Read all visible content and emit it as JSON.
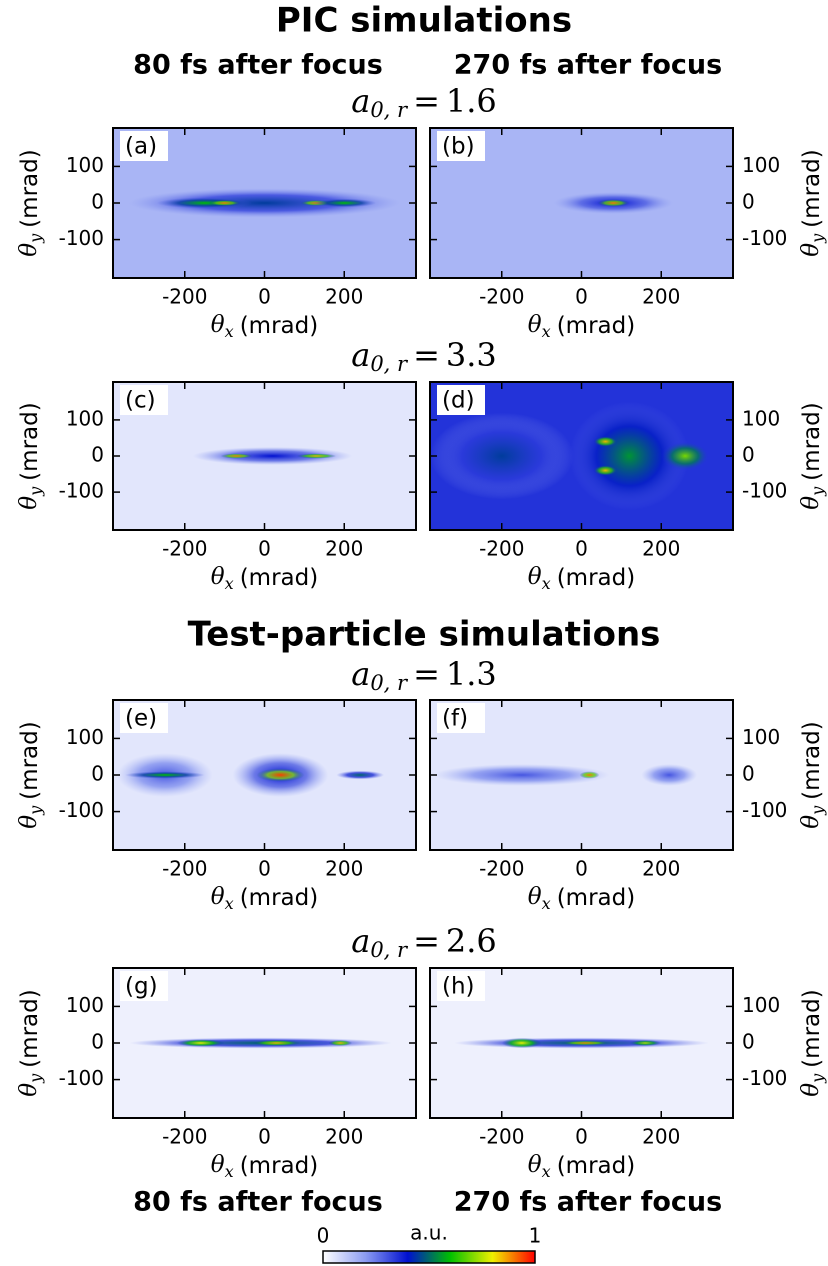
{
  "titles": [
    "PIC simulations",
    "Test-particle simulations"
  ],
  "column_headers": [
    "80 fs after focus",
    "270 fs after focus"
  ],
  "rows": [
    {
      "symbol": "a",
      "subscript": "0, r",
      "relation": "=",
      "value": 1.6
    },
    {
      "symbol": "a",
      "subscript": "0, r",
      "relation": "=",
      "value": 3.3
    },
    {
      "symbol": "a",
      "subscript": "0, r",
      "relation": "=",
      "value": 1.3
    },
    {
      "symbol": "a",
      "subscript": "0, r",
      "relation": "=",
      "value": 2.6
    }
  ],
  "colorbar": {
    "label": "a.u.",
    "lim": [
      0,
      1
    ],
    "ticks": [
      0,
      1
    ],
    "colormap": [
      "#ffffff",
      "#8c9cf2",
      "#0010d0",
      "#00c000",
      "#f0f000",
      "#ff0000"
    ]
  },
  "chart_data": [
    {
      "type": "heatmap",
      "label": "(a)",
      "xlabel": {
        "symbol": "θ",
        "subscript": "x",
        "unit": "(mrad)"
      },
      "ylabel": {
        "symbol": "θ",
        "subscript": "y",
        "unit": "(mrad)"
      },
      "xlim": [
        -380,
        380
      ],
      "ylim": [
        -205,
        205
      ],
      "xticks": [
        -200,
        0,
        200
      ],
      "yticks": [
        -100,
        0,
        100
      ],
      "background": 0.15,
      "blobs": [
        {
          "x": 0,
          "y": 0,
          "sx": 340,
          "sy": 40,
          "intensity": 0.45
        },
        {
          "x": -150,
          "y": 0,
          "sx": 120,
          "sy": 15,
          "intensity": 0.6
        },
        {
          "x": -100,
          "y": 0,
          "sx": 40,
          "sy": 8,
          "intensity": 0.9
        },
        {
          "x": 130,
          "y": 0,
          "sx": 40,
          "sy": 8,
          "intensity": 0.9
        },
        {
          "x": 200,
          "y": 0,
          "sx": 80,
          "sy": 12,
          "intensity": 0.6
        }
      ]
    },
    {
      "type": "heatmap",
      "label": "(b)",
      "xlabel": {
        "symbol": "θ",
        "subscript": "x",
        "unit": "(mrad)"
      },
      "ylabel": {
        "symbol": "θ",
        "subscript": "y",
        "unit": "(mrad)"
      },
      "xlim": [
        -380,
        380
      ],
      "ylim": [
        -205,
        205
      ],
      "xticks": [
        -200,
        0,
        200
      ],
      "yticks": [
        -100,
        0,
        100
      ],
      "background": 0.15,
      "blobs": [
        {
          "x": 80,
          "y": 0,
          "sx": 150,
          "sy": 30,
          "intensity": 0.4
        },
        {
          "x": 80,
          "y": 0,
          "sx": 40,
          "sy": 10,
          "intensity": 0.9
        }
      ]
    },
    {
      "type": "heatmap",
      "label": "(c)",
      "xlabel": {
        "symbol": "θ",
        "subscript": "x",
        "unit": "(mrad)"
      },
      "ylabel": {
        "symbol": "θ",
        "subscript": "y",
        "unit": "(mrad)"
      },
      "xlim": [
        -380,
        380
      ],
      "ylim": [
        -205,
        205
      ],
      "xticks": [
        -200,
        0,
        200
      ],
      "yticks": [
        -100,
        0,
        100
      ],
      "background": 0.05,
      "blobs": [
        {
          "x": 20,
          "y": 0,
          "sx": 200,
          "sy": 25,
          "intensity": 0.4
        },
        {
          "x": -70,
          "y": 0,
          "sx": 40,
          "sy": 7,
          "intensity": 0.9
        },
        {
          "x": 130,
          "y": 0,
          "sx": 50,
          "sy": 7,
          "intensity": 0.85
        }
      ]
    },
    {
      "type": "heatmap",
      "label": "(d)",
      "xlabel": {
        "symbol": "θ",
        "subscript": "x",
        "unit": "(mrad)"
      },
      "ylabel": {
        "symbol": "θ",
        "subscript": "y",
        "unit": "(mrad)"
      },
      "xlim": [
        -380,
        380
      ],
      "ylim": [
        -205,
        205
      ],
      "xticks": [
        -200,
        0,
        200
      ],
      "yticks": [
        -100,
        0,
        100
      ],
      "background": 0.35,
      "blobs": [
        {
          "x": -200,
          "y": 0,
          "sx": 180,
          "sy": 120,
          "intensity": 0.45
        },
        {
          "x": 120,
          "y": 0,
          "sx": 150,
          "sy": 150,
          "intensity": 0.55
        },
        {
          "x": 60,
          "y": 40,
          "sx": 30,
          "sy": 15,
          "intensity": 0.85
        },
        {
          "x": 60,
          "y": -40,
          "sx": 30,
          "sy": 15,
          "intensity": 0.85
        },
        {
          "x": 260,
          "y": 0,
          "sx": 60,
          "sy": 40,
          "intensity": 0.7
        }
      ]
    },
    {
      "type": "heatmap",
      "label": "(e)",
      "xlabel": {
        "symbol": "θ",
        "subscript": "x",
        "unit": "(mrad)"
      },
      "ylabel": {
        "symbol": "θ",
        "subscript": "y",
        "unit": "(mrad)"
      },
      "xlim": [
        -380,
        380
      ],
      "ylim": [
        -205,
        205
      ],
      "xticks": [
        -200,
        0,
        200
      ],
      "yticks": [
        -100,
        0,
        100
      ],
      "background": 0.05,
      "blobs": [
        {
          "x": -250,
          "y": 0,
          "sx": 120,
          "sy": 60,
          "intensity": 0.3
        },
        {
          "x": -250,
          "y": 0,
          "sx": 100,
          "sy": 10,
          "intensity": 0.6
        },
        {
          "x": 40,
          "y": 0,
          "sx": 120,
          "sy": 60,
          "intensity": 0.4
        },
        {
          "x": 40,
          "y": 0,
          "sx": 60,
          "sy": 18,
          "intensity": 0.95
        },
        {
          "x": 240,
          "y": 0,
          "sx": 60,
          "sy": 12,
          "intensity": 0.5
        }
      ]
    },
    {
      "type": "heatmap",
      "label": "(f)",
      "xlabel": {
        "symbol": "θ",
        "subscript": "x",
        "unit": "(mrad)"
      },
      "ylabel": {
        "symbol": "θ",
        "subscript": "y",
        "unit": "(mrad)"
      },
      "xlim": [
        -380,
        380
      ],
      "ylim": [
        -205,
        205
      ],
      "xticks": [
        -200,
        0,
        200
      ],
      "yticks": [
        -100,
        0,
        100
      ],
      "background": 0.05,
      "blobs": [
        {
          "x": -150,
          "y": 0,
          "sx": 220,
          "sy": 30,
          "intensity": 0.3
        },
        {
          "x": 20,
          "y": 0,
          "sx": 25,
          "sy": 10,
          "intensity": 0.9
        },
        {
          "x": 220,
          "y": 0,
          "sx": 70,
          "sy": 30,
          "intensity": 0.3
        }
      ]
    },
    {
      "type": "heatmap",
      "label": "(g)",
      "xlabel": {
        "symbol": "θ",
        "subscript": "x",
        "unit": "(mrad)"
      },
      "ylabel": {
        "symbol": "θ",
        "subscript": "y",
        "unit": "(mrad)"
      },
      "xlim": [
        -380,
        380
      ],
      "ylim": [
        -205,
        205
      ],
      "xticks": [
        -200,
        0,
        200
      ],
      "yticks": [
        -100,
        0,
        100
      ],
      "background": 0.03,
      "blobs": [
        {
          "x": -10,
          "y": 0,
          "sx": 330,
          "sy": 15,
          "intensity": 0.5
        },
        {
          "x": -160,
          "y": 0,
          "sx": 60,
          "sy": 10,
          "intensity": 0.8
        },
        {
          "x": 30,
          "y": 0,
          "sx": 60,
          "sy": 8,
          "intensity": 0.85
        },
        {
          "x": 190,
          "y": 0,
          "sx": 30,
          "sy": 8,
          "intensity": 0.85
        }
      ]
    },
    {
      "type": "heatmap",
      "label": "(h)",
      "xlabel": {
        "symbol": "θ",
        "subscript": "x",
        "unit": "(mrad)"
      },
      "ylabel": {
        "symbol": "θ",
        "subscript": "y",
        "unit": "(mrad)"
      },
      "xlim": [
        -380,
        380
      ],
      "ylim": [
        -205,
        205
      ],
      "xticks": [
        -200,
        0,
        200
      ],
      "yticks": [
        -100,
        0,
        100
      ],
      "background": 0.03,
      "blobs": [
        {
          "x": 0,
          "y": 0,
          "sx": 320,
          "sy": 15,
          "intensity": 0.5
        },
        {
          "x": -150,
          "y": 0,
          "sx": 50,
          "sy": 14,
          "intensity": 0.8
        },
        {
          "x": 10,
          "y": 0,
          "sx": 60,
          "sy": 6,
          "intensity": 0.9
        },
        {
          "x": 160,
          "y": 0,
          "sx": 40,
          "sy": 8,
          "intensity": 0.75
        }
      ]
    }
  ]
}
